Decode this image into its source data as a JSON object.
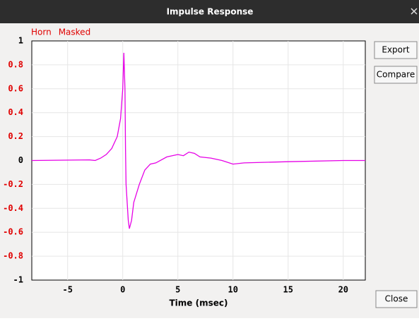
{
  "window": {
    "title": "Impulse Response"
  },
  "buttons": [
    "Export",
    "Compare",
    "Close"
  ],
  "chart_data": {
    "type": "line",
    "annotations": [
      "Horn",
      "Masked"
    ],
    "x_label": "Time (msec)",
    "x": [
      -8.25,
      -3,
      -2.5,
      -2,
      -1.5,
      -1,
      -0.5,
      -0.2,
      0,
      0.1,
      0.2,
      0.25,
      0.3,
      0.5,
      0.6,
      0.8,
      1,
      1.5,
      2,
      2.5,
      3,
      4,
      5,
      5.5,
      6,
      6.5,
      7,
      8,
      9,
      10,
      11,
      15,
      20,
      22
    ],
    "series": [
      {
        "color": "#e600e6",
        "values": [
          0,
          0.005,
          0,
          0.02,
          0.05,
          0.1,
          0.2,
          0.35,
          0.6,
          0.9,
          0.6,
          0.1,
          -0.2,
          -0.5,
          -0.57,
          -0.5,
          -0.35,
          -0.2,
          -0.08,
          -0.03,
          -0.02,
          0.03,
          0.05,
          0.04,
          0.07,
          0.06,
          0.03,
          0.02,
          0,
          -0.03,
          -0.02,
          -0.01,
          0,
          0
        ]
      }
    ],
    "xlim": [
      -8.25,
      22
    ],
    "xticks": [
      -5,
      0,
      5,
      10,
      15,
      20
    ],
    "ylim": [
      -1,
      1
    ],
    "yticks": [
      -1,
      -0.8,
      -0.6,
      -0.4,
      -0.2,
      0,
      0.2,
      0.4,
      0.6,
      0.8,
      1
    ],
    "grid": true,
    "annotation_color": "#e00000"
  }
}
